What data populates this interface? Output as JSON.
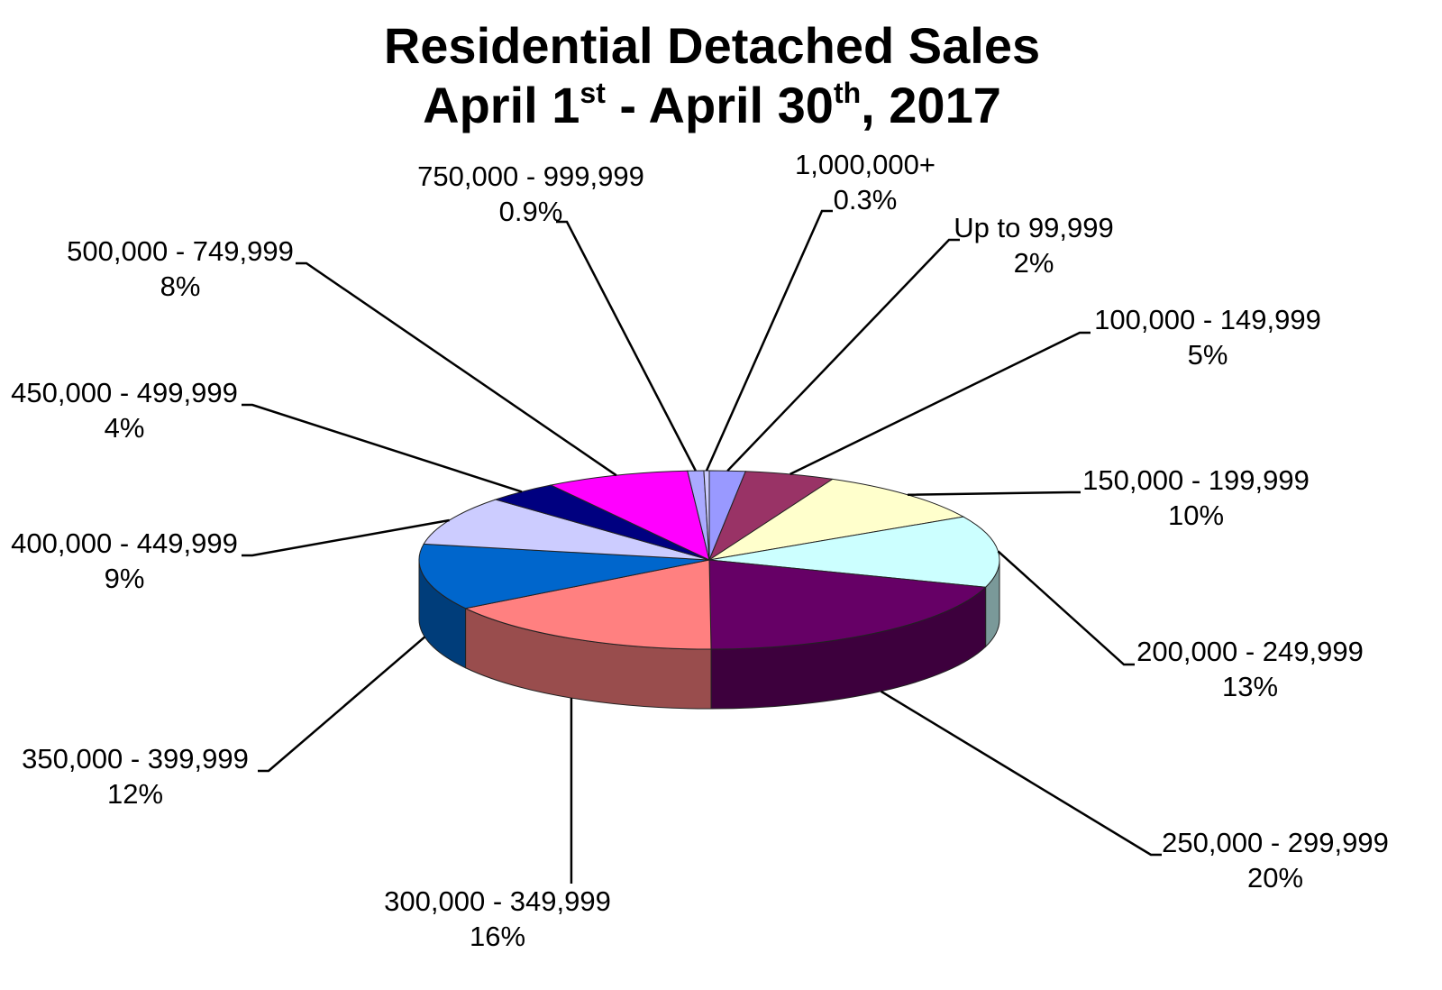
{
  "chart_data": {
    "type": "pie",
    "title": {
      "line1": "Residential Detached Sales",
      "line2_parts": [
        "April 1",
        "st",
        " - April 30",
        "th",
        ", 2017"
      ]
    },
    "slices": [
      {
        "label": "Up to 99,999",
        "value_label": "2%",
        "value": 2,
        "color": "#9999ff"
      },
      {
        "label": "100,000 - 149,999",
        "value_label": "5%",
        "value": 5,
        "color": "#993366"
      },
      {
        "label": "150,000 - 199,999",
        "value_label": "10%",
        "value": 10,
        "color": "#ffffcc"
      },
      {
        "label": "200,000 - 249,999",
        "value_label": "13%",
        "value": 13,
        "color": "#ccffff"
      },
      {
        "label": "250,000 - 299,999",
        "value_label": "20%",
        "value": 20,
        "color": "#660066"
      },
      {
        "label": "300,000 - 349,999",
        "value_label": "16%",
        "value": 16,
        "color": "#ff8080"
      },
      {
        "label": "350,000 - 399,999",
        "value_label": "12%",
        "value": 12,
        "color": "#0066cc"
      },
      {
        "label": "400,000 - 449,999",
        "value_label": "9%",
        "value": 9,
        "color": "#ccccff"
      },
      {
        "label": "450,000 - 499,999",
        "value_label": "4%",
        "value": 4,
        "color": "#000080"
      },
      {
        "label": "500,000 - 749,999",
        "value_label": "8%",
        "value": 8,
        "color": "#ff00ff"
      },
      {
        "label": "750,000 - 999,999",
        "value_label": "0.9%",
        "value": 0.9,
        "color": "#aaaaff"
      },
      {
        "label": "1,000,000+",
        "value_label": "0.3%",
        "value": 0.3,
        "color": "#ccccff"
      }
    ]
  }
}
